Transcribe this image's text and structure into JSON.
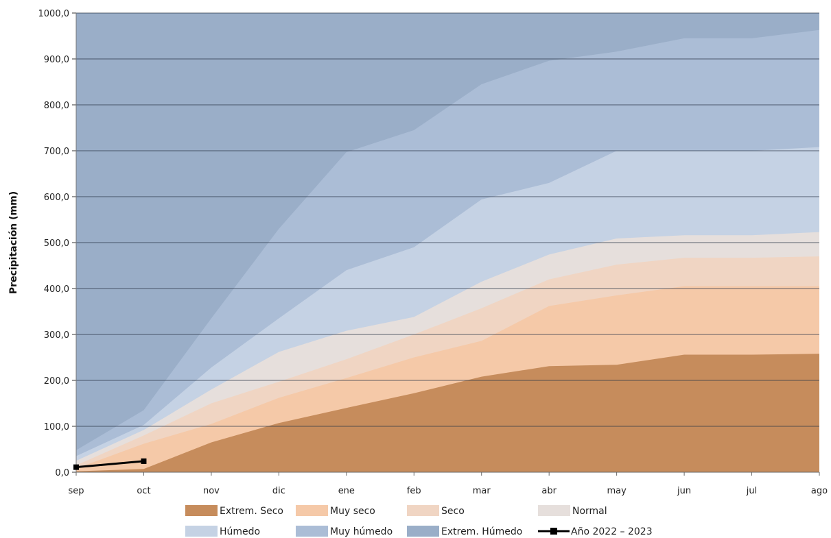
{
  "chart_data": {
    "type": "area",
    "ylabel": "Precipitación (mm)",
    "xlabel": "",
    "categories": [
      "sep",
      "oct",
      "nov",
      "dic",
      "ene",
      "feb",
      "mar",
      "abr",
      "may",
      "jun",
      "jul",
      "ago"
    ],
    "ylim": [
      0,
      1000
    ],
    "yticks": [
      0,
      100,
      200,
      300,
      400,
      500,
      600,
      700,
      800,
      900,
      1000
    ],
    "ytick_labels": [
      "0,0",
      "100,0",
      "200,0",
      "300,0",
      "400,0",
      "500,0",
      "600,0",
      "700,0",
      "800,0",
      "900,0",
      "1000,0"
    ],
    "grid": true,
    "legend_position": "bottom",
    "series": [
      {
        "name": "Extrem. Seco",
        "color": "#c68c5c",
        "values": [
          2,
          7,
          65,
          107,
          140,
          172,
          208,
          231,
          234,
          256,
          256,
          258
        ]
      },
      {
        "name": "Muy seco",
        "color": "#f5c9a8",
        "values": [
          8,
          62,
          105,
          162,
          205,
          250,
          286,
          362,
          385,
          405,
          405,
          405
        ]
      },
      {
        "name": "Seco",
        "color": "#f0d5c3",
        "values": [
          15,
          80,
          150,
          197,
          246,
          300,
          357,
          420,
          452,
          467,
          467,
          470
        ]
      },
      {
        "name": "Normal",
        "color": "#e6dfdc",
        "values": [
          25,
          92,
          180,
          262,
          308,
          338,
          415,
          474,
          509,
          516,
          516,
          523
        ]
      },
      {
        "name": "Húmedo",
        "color": "#c5d2e4",
        "values": [
          35,
          103,
          228,
          335,
          440,
          490,
          594,
          630,
          700,
          700,
          700,
          708
        ]
      },
      {
        "name": "Muy húmedo",
        "color": "#abbdd6",
        "values": [
          48,
          135,
          335,
          530,
          697,
          745,
          845,
          896,
          916,
          945,
          945,
          963
        ]
      },
      {
        "name": "Extrem. Húmedo",
        "color": "#9aaec8",
        "values": [
          1000,
          1000,
          1000,
          1000,
          1000,
          1000,
          1000,
          1000,
          1000,
          1000,
          1000,
          1000
        ]
      }
    ],
    "line_series": {
      "name": "Año 2022 – 2023",
      "color": "#000000",
      "values": [
        11,
        24
      ]
    }
  }
}
